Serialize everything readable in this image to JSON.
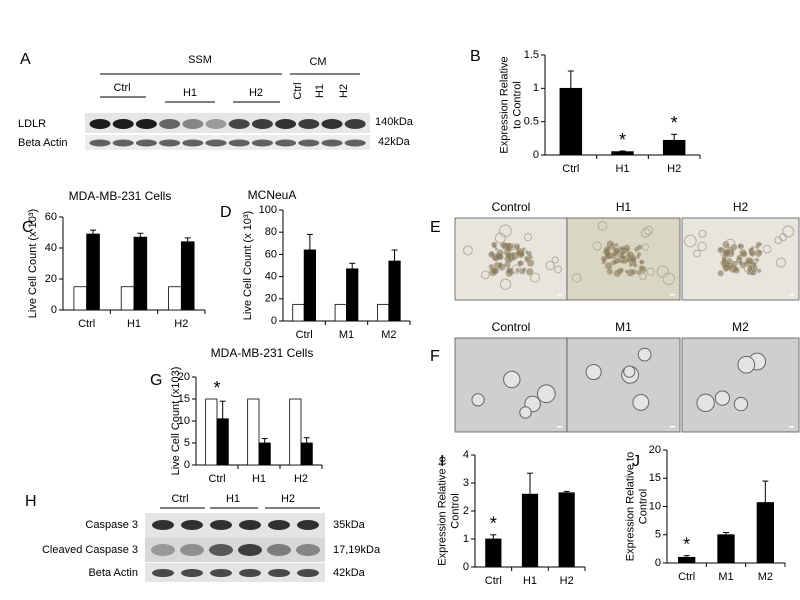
{
  "chart_data": [
    {
      "type": "bar",
      "panel": "B",
      "ylabel": "Expression Relative to Control",
      "categories": [
        "Ctrl",
        "H1",
        "H2"
      ],
      "series": [
        {
          "color": "#000000",
          "values": [
            1.0,
            0.05,
            0.22
          ],
          "errors": [
            0.26,
            0.01,
            0.09
          ]
        }
      ],
      "annotations": [
        null,
        "*",
        "*"
      ],
      "ylim": [
        0,
        1.5
      ],
      "yticks": [
        0,
        0.5,
        1,
        1.5
      ]
    },
    {
      "type": "bar",
      "panel": "C",
      "title": "MDA-MB-231 Cells",
      "ylabel": "Live Cell Count (x 10³)",
      "categories": [
        "Ctrl",
        "H1",
        "H2"
      ],
      "series": [
        {
          "color": "#ffffff",
          "values": [
            15,
            15,
            15
          ]
        },
        {
          "color": "#000000",
          "values": [
            49,
            47,
            44
          ],
          "errors": [
            2.5,
            2.5,
            2.5
          ]
        }
      ],
      "ylim": [
        0,
        60
      ],
      "yticks": [
        0,
        20,
        40,
        60
      ]
    },
    {
      "type": "bar",
      "panel": "D",
      "title": "MCNeuA",
      "ylabel": "Live Cell Count (x 10³)",
      "categories": [
        "Ctrl",
        "M1",
        "M2"
      ],
      "series": [
        {
          "color": "#ffffff",
          "values": [
            15,
            15,
            15
          ]
        },
        {
          "color": "#000000",
          "values": [
            64,
            47,
            54
          ],
          "errors": [
            14,
            5,
            10
          ]
        }
      ],
      "ylim": [
        0,
        100
      ],
      "yticks": [
        0,
        20,
        40,
        60,
        80,
        100
      ]
    },
    {
      "type": "bar",
      "panel": "G",
      "title": "MDA-MB-231 Cells",
      "ylabel": "Live Cell Count (x103)",
      "categories": [
        "Ctrl",
        "H1",
        "H2"
      ],
      "series": [
        {
          "color": "#ffffff",
          "values": [
            15,
            15,
            15
          ]
        },
        {
          "color": "#000000",
          "values": [
            10.5,
            5,
            5
          ],
          "errors": [
            4,
            1,
            1.2
          ]
        }
      ],
      "annotations": [
        "*",
        null,
        null
      ],
      "ylim": [
        0,
        20
      ],
      "yticks": [
        0,
        5,
        10,
        15,
        20
      ]
    },
    {
      "type": "bar",
      "panel": "I",
      "ylabel": "Expression Relative to Control",
      "categories": [
        "Ctrl",
        "H1",
        "H2"
      ],
      "series": [
        {
          "color": "#000000",
          "values": [
            1.0,
            2.6,
            2.65
          ],
          "errors": [
            0.15,
            0.75,
            0.05
          ]
        }
      ],
      "annotations": [
        "*",
        null,
        null
      ],
      "ylim": [
        0,
        4
      ],
      "yticks": [
        0,
        1,
        2,
        3,
        4
      ]
    },
    {
      "type": "bar",
      "panel": "J",
      "ylabel": "Expression Relative to Control",
      "categories": [
        "Ctrl",
        "M1",
        "M2"
      ],
      "series": [
        {
          "color": "#000000",
          "values": [
            1,
            5,
            10.7
          ],
          "errors": [
            0.3,
            0.4,
            3.8
          ]
        }
      ],
      "annotations": [
        "*",
        null,
        null
      ],
      "ylim": [
        0,
        20
      ],
      "yticks": [
        0,
        5,
        10,
        15,
        20
      ]
    }
  ],
  "blot_a": {
    "panel": "A",
    "headers": [
      "SSM",
      "CM"
    ],
    "ssm_lanes": [
      "Ctrl",
      "H1",
      "H2"
    ],
    "cm_lanes": [
      "Ctrl",
      "H1",
      "H2"
    ],
    "rows": [
      "LDLR",
      "Beta Actin"
    ],
    "sizes": [
      "140kDa",
      "42kDa"
    ]
  },
  "blot_h": {
    "panel": "H",
    "lanes": [
      "Ctrl",
      "H1",
      "H2"
    ],
    "rows": [
      "Caspase 3",
      "Cleaved Caspase 3",
      "Beta Actin"
    ],
    "sizes": [
      "35kDa",
      "17,19kDa",
      "42kDa"
    ]
  },
  "micrographs": [
    {
      "panel": "E",
      "labels": [
        "Control",
        "H1",
        "H2"
      ]
    },
    {
      "panel": "F",
      "labels": [
        "Control",
        "M1",
        "M2"
      ]
    }
  ]
}
